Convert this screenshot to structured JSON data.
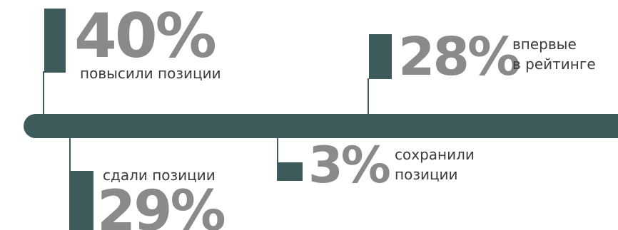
{
  "colors": {
    "accent": "#3e5b5c",
    "percent": "#8a8a8a",
    "caption": "#3a3a3a"
  },
  "stats": [
    {
      "value": "40%",
      "caption": "повысили позиции"
    },
    {
      "value": "28%",
      "caption_line1": "впервые",
      "caption_line2": "в рейтинге"
    },
    {
      "value": "3%",
      "caption_line1": "сохранили",
      "caption_line2": "позиции"
    },
    {
      "value": "29%",
      "caption": "сдали позиции"
    }
  ]
}
